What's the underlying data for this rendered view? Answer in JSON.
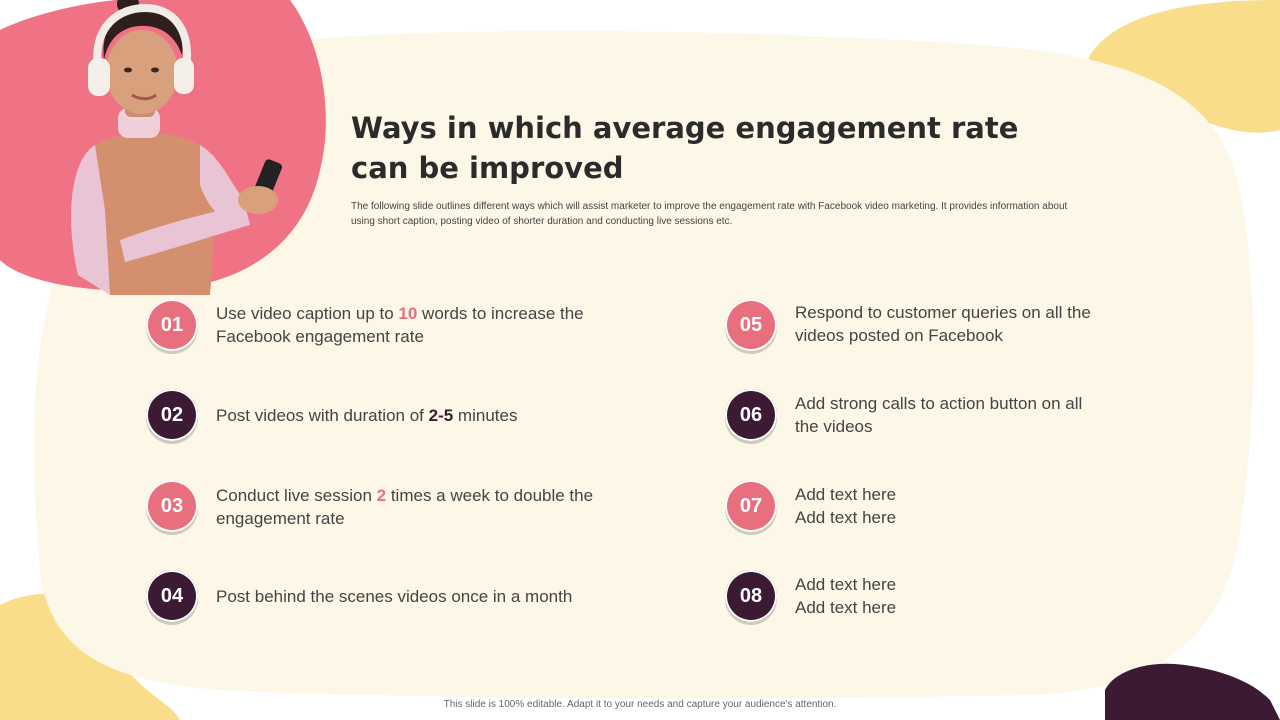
{
  "title_line1": "Ways in which average engagement rate",
  "title_line2": "can be improved",
  "subtitle_line1": "The following slide outlines different ways which will assist marketer to improve the engagement rate with Facebook video marketing. It provides information about",
  "subtitle_line2": "using short caption, posting video of shorter duration and conducting live sessions etc.",
  "items": [
    {
      "number": "01",
      "pre": "Use video caption up to ",
      "highlight": "10",
      "post1": " words to increase the",
      "line2": "Facebook engagement rate"
    },
    {
      "number": "02",
      "pre": "Post videos with duration of ",
      "highlight": "2-5",
      "post1": " minutes"
    },
    {
      "number": "03",
      "pre": "Conduct live session ",
      "highlight": "2",
      "post1": " times a week to double the",
      "line2": "engagement rate"
    },
    {
      "number": "04",
      "line1": "Post behind the scenes videos once in a month"
    },
    {
      "number": "05",
      "line1": "Respond to customer queries on all the",
      "line2": "videos posted on Facebook"
    },
    {
      "number": "06",
      "line1": "Add strong calls to action button on all",
      "line2": "the videos"
    },
    {
      "number": "07",
      "line1": "Add text here",
      "line2": "Add text here"
    },
    {
      "number": "08",
      "line1": "Add text here",
      "line2": "Add text here"
    }
  ],
  "footer": "This slide is 100% editable. Adapt it to your needs and capture your audience's attention.",
  "colors": {
    "pink": "#e8707e",
    "dark": "#3c1a33",
    "cream": "#fcf7e6",
    "yellow": "#f9dd8a"
  }
}
